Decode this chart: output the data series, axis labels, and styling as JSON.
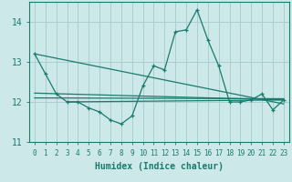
{
  "xlabel": "Humidex (Indice chaleur)",
  "x_values": [
    0,
    1,
    2,
    3,
    4,
    5,
    6,
    7,
    8,
    9,
    10,
    11,
    12,
    13,
    14,
    15,
    16,
    17,
    18,
    19,
    20,
    21,
    22,
    23
  ],
  "main_line": [
    13.2,
    12.7,
    12.2,
    12.0,
    12.0,
    11.85,
    11.75,
    11.55,
    11.45,
    11.65,
    12.4,
    12.9,
    12.8,
    13.75,
    13.8,
    14.3,
    13.55,
    12.9,
    12.0,
    12.0,
    12.05,
    12.2,
    11.8,
    12.05
  ],
  "trend_line1_pts": [
    [
      0,
      13.2
    ],
    [
      23,
      11.95
    ]
  ],
  "trend_line2_pts": [
    [
      0,
      12.22
    ],
    [
      23,
      12.05
    ]
  ],
  "trend_line3_pts": [
    [
      0,
      12.1
    ],
    [
      23,
      12.08
    ]
  ],
  "trend_line4_pts": [
    [
      3,
      12.0
    ],
    [
      23,
      12.05
    ]
  ],
  "ylim": [
    11.0,
    14.5
  ],
  "yticks": [
    11,
    12,
    13,
    14
  ],
  "xlim": [
    -0.5,
    23.5
  ],
  "bg_color": "#cce8e8",
  "line_color": "#1a7a6e",
  "grid_color": "#aacfcf",
  "font_color": "#1a7a6e",
  "font_size_x": 5.5,
  "font_size_y": 7.0,
  "font_size_label": 7.0
}
